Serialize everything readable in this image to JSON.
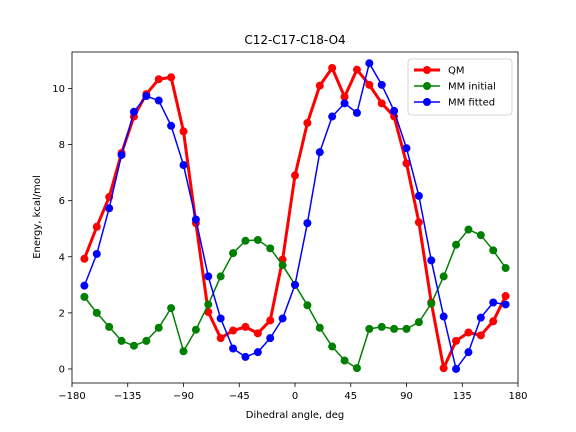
{
  "chart_data": {
    "type": "line",
    "title": "C12-C17-C18-O4",
    "xlabel": "Dihedral angle, deg",
    "ylabel": "Energy, kcal/mol",
    "xlim": [
      -180,
      180
    ],
    "ylim": [
      -0.5,
      11.3
    ],
    "xticks": [
      -180,
      -135,
      -90,
      -45,
      0,
      45,
      90,
      135,
      180
    ],
    "yticks": [
      0,
      2,
      4,
      6,
      8,
      10
    ],
    "grid": false,
    "legend_position": "top-right",
    "x": [
      -170,
      -160,
      -150,
      -140,
      -130,
      -120,
      -110,
      -100,
      -90,
      -80,
      -70,
      -60,
      -50,
      -40,
      -30,
      -20,
      -10,
      0,
      10,
      20,
      30,
      40,
      50,
      60,
      70,
      80,
      90,
      100,
      110,
      120,
      130,
      140,
      150,
      160,
      170
    ],
    "series": [
      {
        "name": "QM",
        "color": "#ff0000",
        "values": [
          3.93,
          5.07,
          6.13,
          7.7,
          9.0,
          9.8,
          10.33,
          10.4,
          8.47,
          5.2,
          2.03,
          1.1,
          1.37,
          1.5,
          1.27,
          1.73,
          3.9,
          6.9,
          8.77,
          10.1,
          10.73,
          9.7,
          10.67,
          10.13,
          9.47,
          9.0,
          7.33,
          5.23,
          2.37,
          0.03,
          1.0,
          1.3,
          1.2,
          1.7,
          2.6
        ]
      },
      {
        "name": "MM initial",
        "color": "#008000",
        "values": [
          2.57,
          2.0,
          1.5,
          1.0,
          0.83,
          1.0,
          1.47,
          2.17,
          0.63,
          1.4,
          2.3,
          3.3,
          4.13,
          4.57,
          4.6,
          4.3,
          3.7,
          3.0,
          2.27,
          1.47,
          0.8,
          0.3,
          0.03,
          1.43,
          1.5,
          1.43,
          1.43,
          1.67,
          2.33,
          3.3,
          4.43,
          4.97,
          4.77,
          4.23,
          3.6
        ]
      },
      {
        "name": "MM fitted",
        "color": "#0000ff",
        "values": [
          2.97,
          4.1,
          5.73,
          7.63,
          9.17,
          9.73,
          9.57,
          8.67,
          7.27,
          5.33,
          3.3,
          1.8,
          0.73,
          0.43,
          0.6,
          1.1,
          1.8,
          3.0,
          5.2,
          7.73,
          9.0,
          9.47,
          9.13,
          10.9,
          10.13,
          9.2,
          7.87,
          6.17,
          3.87,
          1.87,
          0.0,
          0.6,
          1.83,
          2.37,
          2.3
        ]
      }
    ]
  }
}
